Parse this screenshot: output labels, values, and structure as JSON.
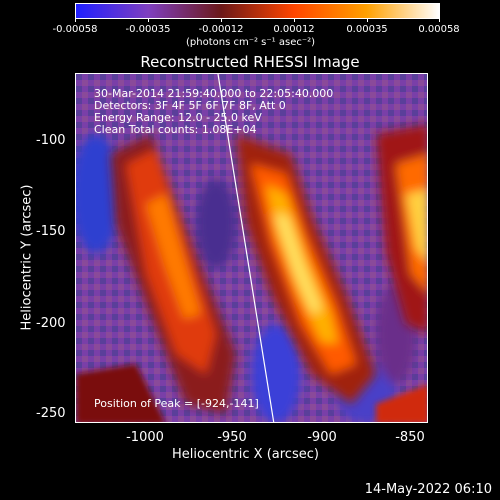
{
  "colorbar": {
    "ticks": [
      "-0.00058",
      "-0.00035",
      "-0.00012",
      "0.00012",
      "0.00035",
      "0.00058"
    ],
    "unit_label": "(photons cm⁻² s⁻¹ asec⁻²)",
    "colors": [
      "#1f1fff",
      "#7f3fbf",
      "#6b1818",
      "#ff4500",
      "#ffa000",
      "#ffffff"
    ]
  },
  "plot": {
    "title": "Reconstructed RHESSI Image",
    "xlabel": "Heliocentric X (arcsec)",
    "ylabel": "Heliocentric Y (arcsec)",
    "xticks": [
      "-1000",
      "-950",
      "-900",
      "-850"
    ],
    "yticks": [
      "-100",
      "-150",
      "-200",
      "-250"
    ],
    "info": [
      "30-Mar-2014 21:59:40.000 to 22:05:40.000",
      "Detectors: 3F 4F 5F 6F 7F 8F, Att 0",
      "Energy Range: 12.0 - 25.0 keV",
      "Clean    Total counts: 1.08E+04"
    ],
    "peak_label": "Position of Peak = [-924,-141]"
  },
  "footer": {
    "date": "14-May-2022 06:10"
  }
}
